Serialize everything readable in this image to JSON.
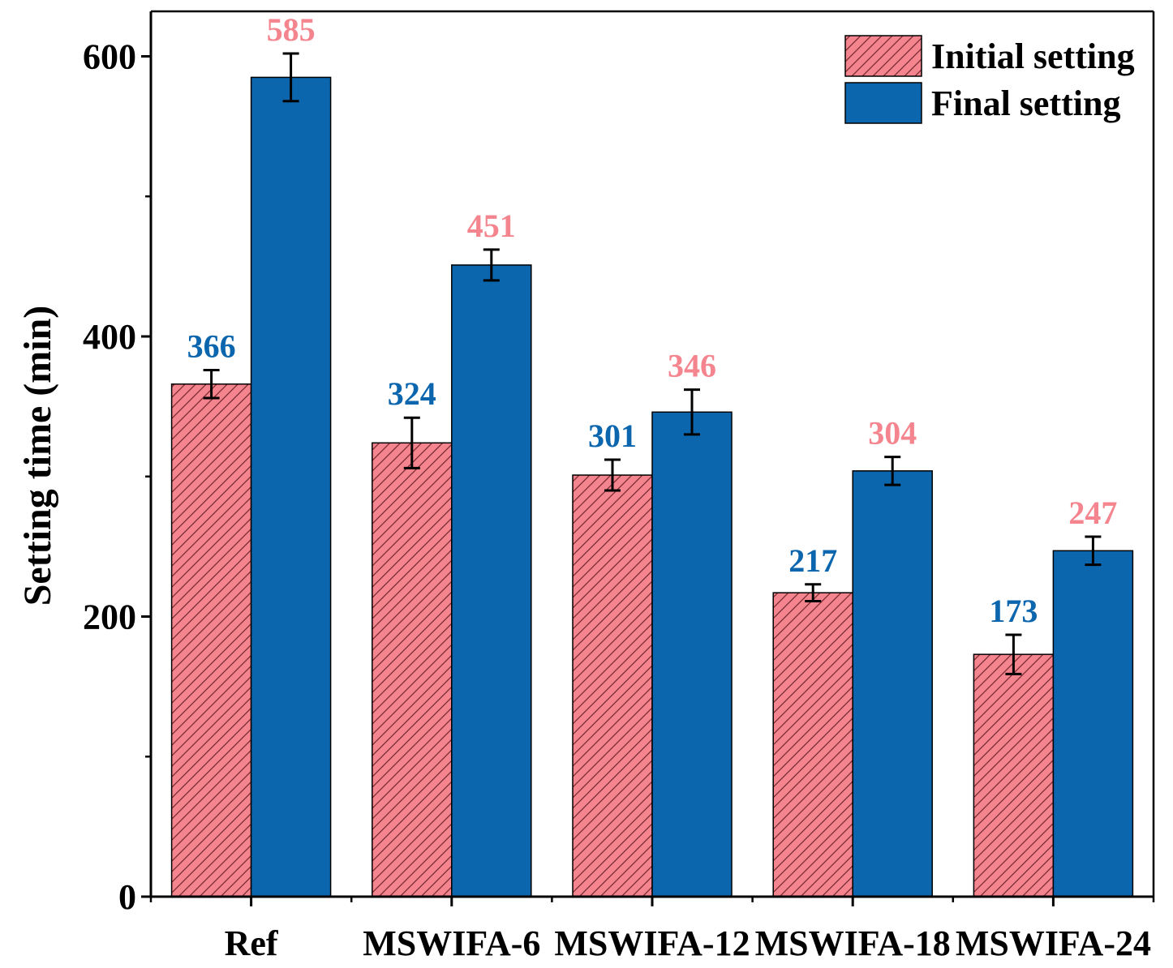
{
  "chart_data": {
    "type": "bar",
    "title": "",
    "xlabel": "",
    "ylabel": "Setting time (min)",
    "ylim": [
      0,
      600
    ],
    "yticks": [
      0,
      200,
      400,
      600
    ],
    "categories": [
      "Ref",
      "MSWIFA-6",
      "MSWIFA-12",
      "MSWIFA-18",
      "MSWIFA-24"
    ],
    "series": [
      {
        "name": "Initial setting",
        "values": [
          366,
          324,
          301,
          217,
          173
        ],
        "errors": [
          10,
          18,
          11,
          6,
          14
        ],
        "color": "#f4858f",
        "pattern": "diagonal-hatch",
        "label_color": "#0b66ae"
      },
      {
        "name": "Final setting",
        "values": [
          585,
          451,
          346,
          304,
          247
        ],
        "errors": [
          17,
          11,
          16,
          10,
          10
        ],
        "color": "#0b66ae",
        "pattern": "solid",
        "label_color": "#f4858f"
      }
    ],
    "legend": "top-right",
    "grid": false
  }
}
